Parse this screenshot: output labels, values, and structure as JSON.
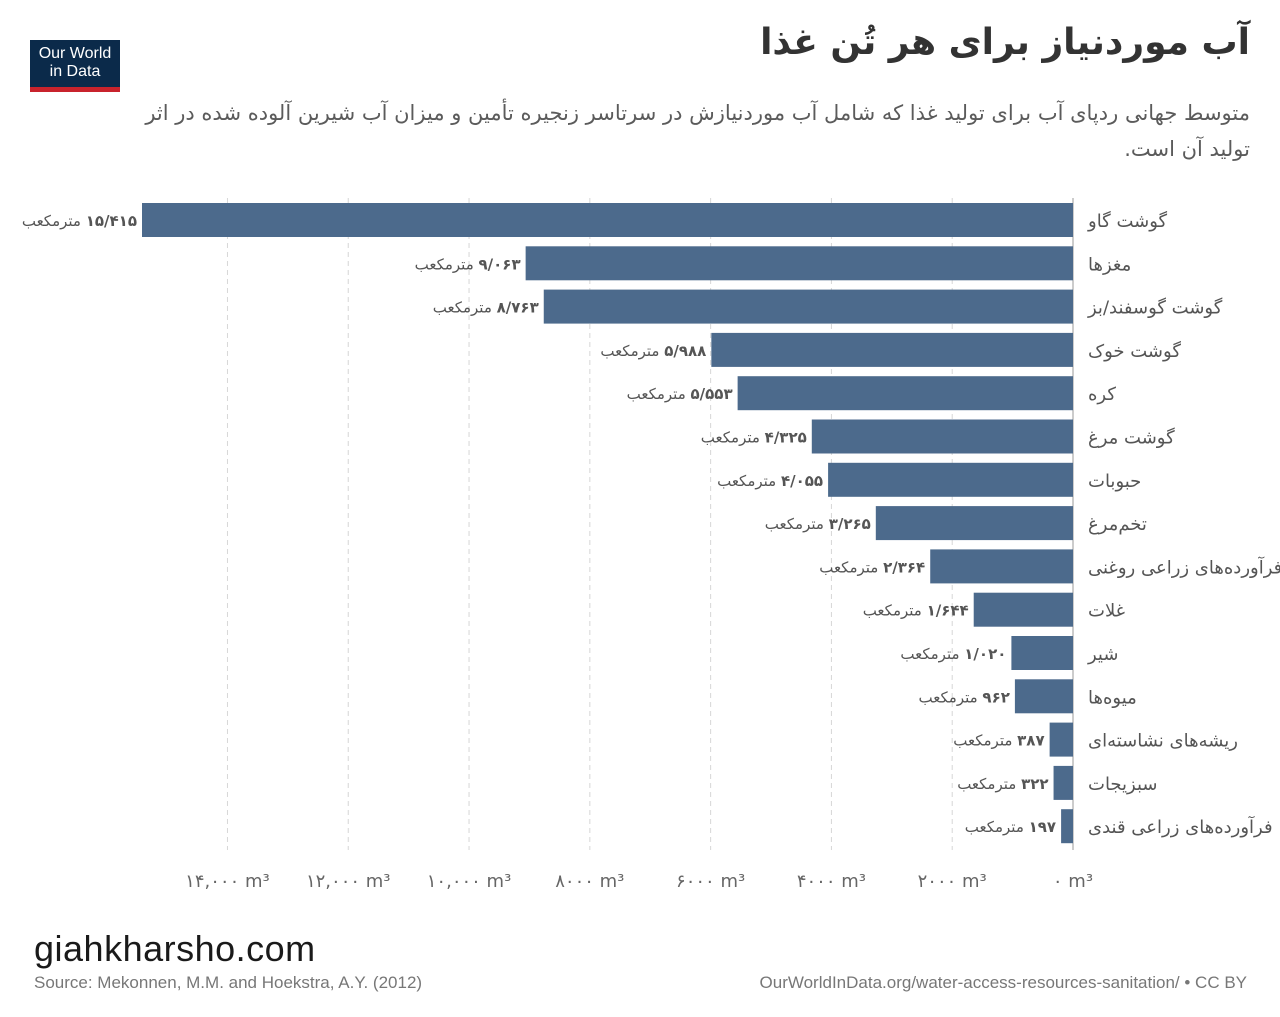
{
  "logo": {
    "line1": "Our World",
    "line2": "in Data"
  },
  "title": "آب موردنیاز برای هر تُن غذا",
  "subtitle": "متوسط جهانی ردپای آب برای تولید غذا که شامل آب موردنیازش در سرتاسر زنجیره تأمین و میزان آب شیرین آلوده شده در اثر تولید آن است.",
  "chart_data": {
    "type": "bar",
    "orientation": "horizontal",
    "categories": [
      "گوشت گاو",
      "مغزها",
      "گوشت گوسفند/بز",
      "گوشت خوک",
      "کره",
      "گوشت مرغ",
      "حبوبات",
      "تخم‌مرغ",
      "فرآورده‌های زراعی روغنی",
      "غلات",
      "شیر",
      "میوه‌ها",
      "ریشه‌های نشاسته‌ای",
      "سبزیجات",
      "فرآورده‌های زراعی قندی"
    ],
    "values": [
      15415,
      9063,
      8763,
      5988,
      5553,
      4325,
      4055,
      3265,
      2364,
      1644,
      1020,
      962,
      387,
      322,
      197
    ],
    "value_labels": [
      "۱۵/۴۱۵",
      "۹/۰۶۳",
      "۸/۷۶۳",
      "۵/۹۸۸",
      "۵/۵۵۳",
      "۴/۳۲۵",
      "۴/۰۵۵",
      "۳/۲۶۵",
      "۲/۳۶۴",
      "۱/۶۴۴",
      "۱/۰۲۰",
      "۹۶۲",
      "۳۸۷",
      "۳۲۲",
      "۱۹۷"
    ],
    "unit_label": "مترمکعب",
    "xlim": [
      0,
      15415
    ],
    "x_reversed": true,
    "xticks": [
      0,
      2000,
      4000,
      6000,
      8000,
      10000,
      12000,
      14000
    ],
    "xtick_labels": [
      "۰ m³",
      "۲۰۰۰ m³",
      "۴۰۰۰ m³",
      "۶۰۰۰ m³",
      "۸۰۰۰ m³",
      "۱۰,۰۰۰ m³",
      "۱۲,۰۰۰ m³",
      "۱۴,۰۰۰ m³"
    ],
    "grid": true,
    "bar_color": "#4c6a8c"
  },
  "watermark": "giahkharsho.com",
  "source": "Source: Mekonnen, M.M. and Hoekstra, A.Y. (2012)",
  "url": "OurWorldInData.org/water-access-resources-sanitation/ • CC BY"
}
